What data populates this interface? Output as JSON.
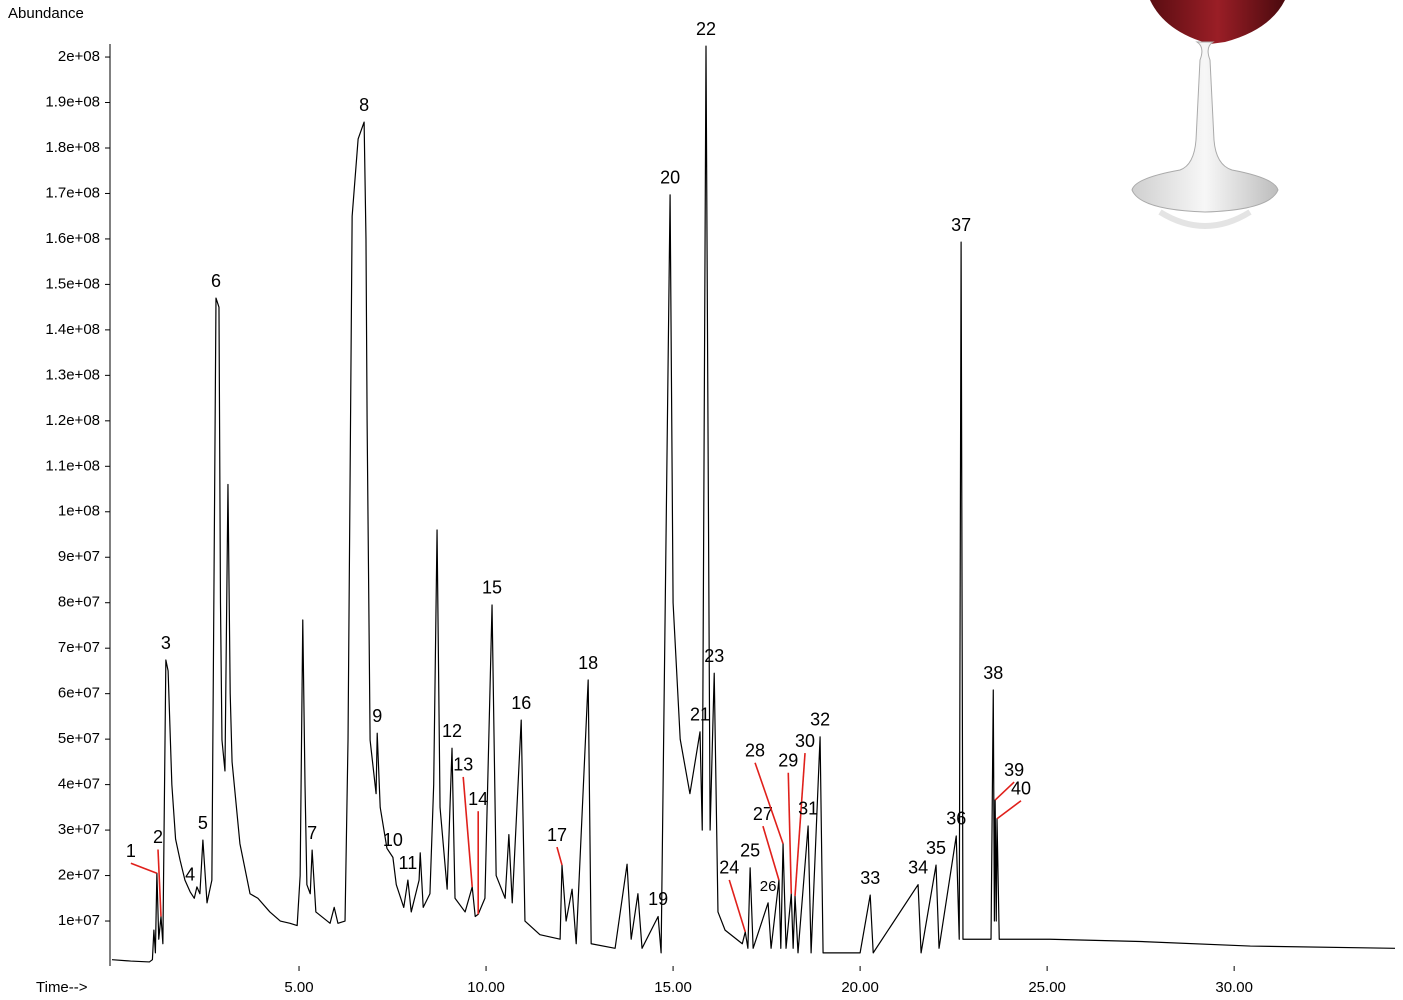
{
  "chart_data": {
    "type": "line",
    "y_label": "Abundance",
    "x_label": "Time-->",
    "color": "#000000",
    "annotation_color": "#e0201b",
    "xlim": [
      0,
      34.3
    ],
    "ylim": [
      0,
      203000000.0
    ],
    "xticks": [
      {
        "value": 5,
        "label": "5.00"
      },
      {
        "value": 10,
        "label": "10.00"
      },
      {
        "value": 15,
        "label": "15.00"
      },
      {
        "value": 20,
        "label": "20.00"
      },
      {
        "value": 25,
        "label": "25.00"
      },
      {
        "value": 30,
        "label": "30.00"
      }
    ],
    "yticks": [
      {
        "value": 10000000.0,
        "label": "1e+07"
      },
      {
        "value": 20000000.0,
        "label": "2e+07"
      },
      {
        "value": 30000000.0,
        "label": "3e+07"
      },
      {
        "value": 40000000.0,
        "label": "4e+07"
      },
      {
        "value": 50000000.0,
        "label": "5e+07"
      },
      {
        "value": 60000000.0,
        "label": "6e+07"
      },
      {
        "value": 70000000.0,
        "label": "7e+07"
      },
      {
        "value": 80000000.0,
        "label": "8e+07"
      },
      {
        "value": 90000000.0,
        "label": "9e+07"
      },
      {
        "value": 100000000.0,
        "label": "1e+08"
      },
      {
        "value": 110000000.0,
        "label": "1.1e+08"
      },
      {
        "value": 120000000.0,
        "label": "1.2e+08"
      },
      {
        "value": 130000000.0,
        "label": "1.3e+08"
      },
      {
        "value": 140000000.0,
        "label": "1.4e+08"
      },
      {
        "value": 150000000.0,
        "label": "1.5e+08"
      },
      {
        "value": 160000000.0,
        "label": "1.6e+08"
      },
      {
        "value": 170000000.0,
        "label": "1.7e+08"
      },
      {
        "value": 180000000.0,
        "label": "1.8e+08"
      },
      {
        "value": 190000000.0,
        "label": "1.9e+08"
      },
      {
        "value": 200000000.0,
        "label": "2e+08"
      }
    ],
    "x": [
      0,
      0.5,
      1.0,
      1.08,
      1.12,
      1.16,
      1.2,
      1.25,
      1.31,
      1.36,
      1.44,
      1.5,
      1.6,
      1.7,
      1.82,
      1.95,
      2.09,
      2.2,
      2.27,
      2.35,
      2.43,
      2.54,
      2.67,
      2.74,
      2.78,
      2.86,
      2.9,
      2.94,
      3.02,
      3.1,
      3.16,
      3.21,
      3.42,
      3.69,
      3.9,
      4.22,
      4.5,
      4.76,
      4.95,
      5.03,
      5.1,
      5.16,
      5.21,
      5.3,
      5.35,
      5.45,
      5.83,
      5.94,
      6.04,
      6.23,
      6.31,
      6.42,
      6.58,
      6.74,
      6.79,
      6.82,
      6.9,
      7.06,
      7.09,
      7.17,
      7.35,
      7.51,
      7.6,
      7.8,
      7.91,
      8.0,
      8.21,
      8.24,
      8.32,
      8.5,
      8.6,
      8.69,
      8.77,
      8.96,
      9.09,
      9.17,
      9.44,
      9.63,
      9.71,
      9.79,
      9.97,
      10.16,
      10.27,
      10.51,
      10.61,
      10.7,
      10.94,
      11.04,
      11.44,
      11.98,
      12.03,
      12.14,
      12.3,
      12.41,
      12.73,
      12.81,
      13.45,
      13.77,
      13.88,
      14.06,
      14.17,
      14.6,
      14.68,
      14.92,
      15.0,
      15.19,
      15.45,
      15.72,
      15.78,
      15.88,
      15.99,
      16.1,
      16.2,
      16.39,
      16.85,
      16.93,
      17.0,
      17.06,
      17.14,
      17.54,
      17.62,
      17.83,
      17.88,
      17.94,
      18.02,
      18.16,
      18.21,
      18.26,
      18.34,
      18.61,
      18.69,
      18.93,
      19.01,
      20.0,
      20.27,
      20.35,
      21.55,
      21.63,
      22.03,
      22.11,
      22.57,
      22.65,
      22.7,
      22.75,
      23.07,
      23.5,
      23.56,
      23.59,
      23.61,
      23.64,
      23.66,
      23.72,
      25.08,
      27.49,
      30.43,
      34.3
    ],
    "values": [
      1500000.0,
      1200000.0,
      1000000.0,
      1500000.0,
      8000000.0,
      3000000.0,
      20500000.0,
      6000000.0,
      11000000.0,
      5000000.0,
      67400000.0,
      65000000.0,
      40000000.0,
      28000000.0,
      23400000.0,
      19000000.0,
      16400000.0,
      15000000.0,
      17500000.0,
      16000000.0,
      27800000.0,
      14000000.0,
      19000000.0,
      100000000.0,
      147000000.0,
      145000000.0,
      80000000.0,
      49800000.0,
      43000000.0,
      106000000.0,
      60000000.0,
      45000000.0,
      27000000.0,
      16000000.0,
      15000000.0,
      12000000.0,
      10000000.0,
      9500000.0,
      9000000.0,
      20000000.0,
      76200000.0,
      40000000.0,
      18000000.0,
      16000000.0,
      25600000.0,
      12000000.0,
      9500000.0,
      13000000.0,
      9500000.0,
      10000000.0,
      50000000.0,
      165000000.0,
      182000000.0,
      185700000.0,
      160000000.0,
      120000000.0,
      49800000.0,
      38000000.0,
      51300000.0,
      35000000.0,
      26000000.0,
      24000000.0,
      18000000.0,
      13000000.0,
      19000000.0,
      12000000.0,
      19000000.0,
      25000000.0,
      13000000.0,
      16000000.0,
      40000000.0,
      96000000.0,
      35000000.0,
      17000000.0,
      48000000.0,
      15000000.0,
      12000000.0,
      17500000.0,
      11000000.0,
      11500000.0,
      15000000.0,
      79500000.0,
      20000000.0,
      15000000.0,
      29000000.0,
      14000000.0,
      54200000.0,
      10000000.0,
      7000000.0,
      6000000.0,
      22300000.0,
      10000000.0,
      17000000.0,
      5000000.0,
      63000000.0,
      5000000.0,
      4000000.0,
      22500000.0,
      6000000.0,
      16000000.0,
      4000000.0,
      11000000.0,
      3000000.0,
      169700000.0,
      80000000.0,
      50000000.0,
      38000000.0,
      51600000.0,
      30000000.0,
      202400000.0,
      30000000.0,
      64500000.0,
      12000000.0,
      8000000.0,
      5000000.0,
      7600000.0,
      4000000.0,
      21700000.0,
      4000000.0,
      14000000.0,
      4000000.0,
      19000000.0,
      4000000.0,
      27000000.0,
      4000000.0,
      16000000.0,
      4000000.0,
      15500000.0,
      3000000.0,
      30900000.0,
      3000000.0,
      50500000.0,
      3000000.0,
      3000000.0,
      15700000.0,
      3000000.0,
      18000000.0,
      3000000.0,
      22300000.0,
      4000000.0,
      28700000.0,
      6000000.0,
      159300000.0,
      6000000.0,
      6000000.0,
      6000000.0,
      60800000.0,
      10000000.0,
      36600000.0,
      10000000.0,
      32500000.0,
      6000000.0,
      6000000.0,
      5500000.0,
      4500000.0,
      4000000.0
    ],
    "peaks": [
      {
        "label": "1",
        "x": 1.2,
        "y": 20500000.0
      },
      {
        "label": "2",
        "x": 1.31,
        "y": 11000000.0
      },
      {
        "label": "3",
        "x": 1.44,
        "y": 67400000.0
      },
      {
        "label": "4",
        "x": 2.09,
        "y": 16400000.0
      },
      {
        "label": "5",
        "x": 2.43,
        "y": 27800000.0
      },
      {
        "label": "6",
        "x": 2.78,
        "y": 147000000.0
      },
      {
        "label": "7",
        "x": 5.35,
        "y": 25600000.0
      },
      {
        "label": "8",
        "x": 6.74,
        "y": 185700000.0
      },
      {
        "label": "9",
        "x": 7.09,
        "y": 51300000.0
      },
      {
        "label": "10",
        "x": 7.51,
        "y": 24000000.0
      },
      {
        "label": "11",
        "x": 7.91,
        "y": 19000000.0
      },
      {
        "label": "12",
        "x": 9.09,
        "y": 48000000.0
      },
      {
        "label": "13",
        "x": 9.63,
        "y": 17500000.0
      },
      {
        "label": "14",
        "x": 9.79,
        "y": 11500000.0
      },
      {
        "label": "15",
        "x": 10.16,
        "y": 79500000.0
      },
      {
        "label": "16",
        "x": 10.94,
        "y": 54200000.0
      },
      {
        "label": "17",
        "x": 12.03,
        "y": 22300000.0
      },
      {
        "label": "18",
        "x": 12.73,
        "y": 63000000.0
      },
      {
        "label": "19",
        "x": 14.6,
        "y": 11000000.0
      },
      {
        "label": "20",
        "x": 14.92,
        "y": 169700000.0
      },
      {
        "label": "21",
        "x": 15.72,
        "y": 51600000.0
      },
      {
        "label": "22",
        "x": 15.88,
        "y": 202400000.0
      },
      {
        "label": "23",
        "x": 16.1,
        "y": 64500000.0
      },
      {
        "label": "24",
        "x": 16.93,
        "y": 7600000.0
      },
      {
        "label": "25",
        "x": 17.06,
        "y": 21700000.0
      },
      {
        "label": "26",
        "x": 17.54,
        "y": 14000000.0
      },
      {
        "label": "27",
        "x": 17.83,
        "y": 19000000.0
      },
      {
        "label": "28",
        "x": 17.94,
        "y": 27000000.0
      },
      {
        "label": "29",
        "x": 18.16,
        "y": 16000000.0
      },
      {
        "label": "30",
        "x": 18.26,
        "y": 15500000.0
      },
      {
        "label": "31",
        "x": 18.61,
        "y": 30900000.0
      },
      {
        "label": "32",
        "x": 18.93,
        "y": 50500000.0
      },
      {
        "label": "33",
        "x": 20.27,
        "y": 15700000.0
      },
      {
        "label": "34",
        "x": 21.55,
        "y": 18000000.0
      },
      {
        "label": "35",
        "x": 22.03,
        "y": 22300000.0
      },
      {
        "label": "36",
        "x": 22.57,
        "y": 28700000.0
      },
      {
        "label": "37",
        "x": 22.7,
        "y": 159300000.0
      },
      {
        "label": "38",
        "x": 23.56,
        "y": 60800000.0
      },
      {
        "label": "39",
        "x": 23.61,
        "y": 36600000.0
      },
      {
        "label": "40",
        "x": 23.66,
        "y": 32500000.0
      }
    ]
  }
}
